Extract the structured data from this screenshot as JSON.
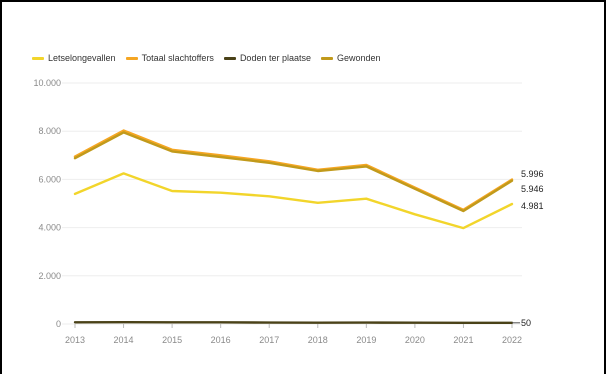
{
  "chart_data": {
    "type": "line",
    "title": "",
    "xlabel": "",
    "ylabel": "",
    "x": [
      "2013",
      "2014",
      "2015",
      "2016",
      "2017",
      "2018",
      "2019",
      "2020",
      "2021",
      "2022"
    ],
    "ylim": [
      0,
      10000
    ],
    "y_ticks": [
      {
        "value": 0,
        "label": "0"
      },
      {
        "value": 2000,
        "label": "2.000"
      },
      {
        "value": 4000,
        "label": "4.000"
      },
      {
        "value": 6000,
        "label": "6.000"
      },
      {
        "value": 8000,
        "label": "8.000"
      },
      {
        "value": 10000,
        "label": "10.000"
      }
    ],
    "grid": true,
    "legend_position": "top-left",
    "series": [
      {
        "name": "Letselongevallen",
        "color": "#f2d52b",
        "values": [
          5400,
          6250,
          5520,
          5450,
          5300,
          5030,
          5200,
          4550,
          3980,
          4981
        ],
        "end_label": "4.981"
      },
      {
        "name": "Totaal slachtoffers",
        "color": "#f5a623",
        "values": [
          6950,
          8030,
          7230,
          7000,
          6750,
          6400,
          6600,
          5660,
          4740,
          5996
        ],
        "end_label": "5.996"
      },
      {
        "name": "Doden ter plaatse",
        "color": "#4a4218",
        "values": [
          70,
          75,
          70,
          72,
          60,
          55,
          58,
          52,
          48,
          50
        ],
        "end_label": "50"
      },
      {
        "name": "Gewonden",
        "color": "#c19a1b",
        "values": [
          6880,
          7950,
          7160,
          6930,
          6690,
          6350,
          6540,
          5610,
          4690,
          5946
        ],
        "end_label": "5.946"
      }
    ]
  }
}
